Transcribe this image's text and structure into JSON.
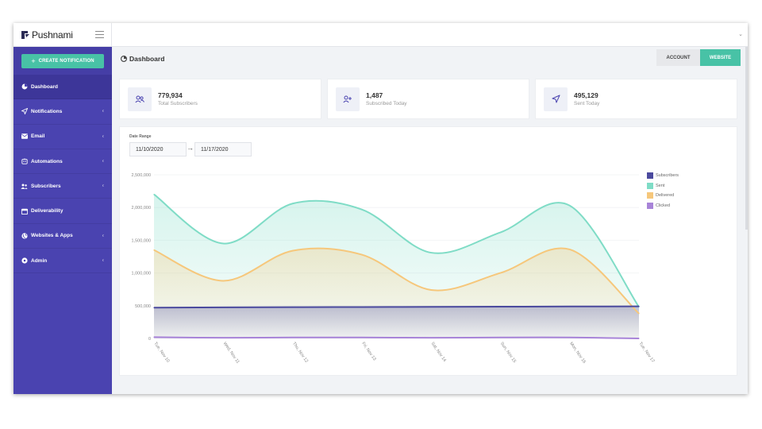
{
  "app": {
    "name": "Pushnami"
  },
  "sidebar": {
    "create_button": "CREATE NOTIFICATION",
    "items": [
      {
        "label": "Dashboard",
        "icon": "pie-chart-icon",
        "active": true,
        "has_chevron": false
      },
      {
        "label": "Notifications",
        "icon": "paper-plane-icon",
        "active": false,
        "has_chevron": true
      },
      {
        "label": "Email",
        "icon": "envelope-icon",
        "active": false,
        "has_chevron": true
      },
      {
        "label": "Automations",
        "icon": "robot-icon",
        "active": false,
        "has_chevron": true
      },
      {
        "label": "Subscribers",
        "icon": "users-icon",
        "active": false,
        "has_chevron": true
      },
      {
        "label": "Deliverability",
        "icon": "calendar-icon",
        "active": false,
        "has_chevron": false
      },
      {
        "label": "Websites & Apps",
        "icon": "globe-icon",
        "active": false,
        "has_chevron": true
      },
      {
        "label": "Admin",
        "icon": "gear-icon",
        "active": false,
        "has_chevron": true
      }
    ]
  },
  "header": {
    "title": "Dashboard",
    "tabs": [
      {
        "label": "ACCOUNT",
        "active": false
      },
      {
        "label": "WEBSITE",
        "active": true
      }
    ]
  },
  "stats": [
    {
      "value": "779,934",
      "label": "Total Subscribers",
      "icon": "users-icon"
    },
    {
      "value": "1,487",
      "label": "Subscribed Today",
      "icon": "user-plus-icon"
    },
    {
      "value": "495,129",
      "label": "Sent Today",
      "icon": "paper-plane-icon"
    }
  ],
  "date_range": {
    "label": "Date Range",
    "start": "11/10/2020",
    "end": "11/17/2020"
  },
  "colors": {
    "sidebar": "#4a43b0",
    "accent": "#48c2a6",
    "subscribers": "#4b4a9e",
    "sent": "#7fdcc6",
    "delivered": "#f6c77b",
    "clicked": "#a884d8"
  },
  "chart_data": {
    "type": "area",
    "x": [
      "Tue, Nov 10",
      "Wed, Nov 11",
      "Thu, Nov 12",
      "Fri, Nov 13",
      "Sat, Nov 14",
      "Sun, Nov 15",
      "Mon, Nov 16",
      "Tue, Nov 17"
    ],
    "ylim": [
      0,
      2500000
    ],
    "yticks": [
      "0",
      "500,000",
      "1,000,000",
      "1,500,000",
      "2,000,000",
      "2,500,000"
    ],
    "ytick_values": [
      0,
      500000,
      1000000,
      1500000,
      2000000,
      2500000
    ],
    "legend_position": "top-right",
    "series": [
      {
        "name": "Subscribers",
        "color": "#4b4a9e",
        "values": [
          470000,
          475000,
          478000,
          480000,
          482000,
          485000,
          488000,
          490000
        ]
      },
      {
        "name": "Sent",
        "color": "#7fdcc6",
        "values": [
          2200000,
          1450000,
          2060000,
          1970000,
          1310000,
          1620000,
          2030000,
          480000
        ]
      },
      {
        "name": "Delivered",
        "color": "#f6c77b",
        "values": [
          1350000,
          880000,
          1340000,
          1280000,
          740000,
          1000000,
          1360000,
          380000
        ]
      },
      {
        "name": "Clicked",
        "color": "#a884d8",
        "values": [
          20000,
          10000,
          15000,
          15000,
          10000,
          15000,
          15000,
          0
        ]
      }
    ]
  }
}
